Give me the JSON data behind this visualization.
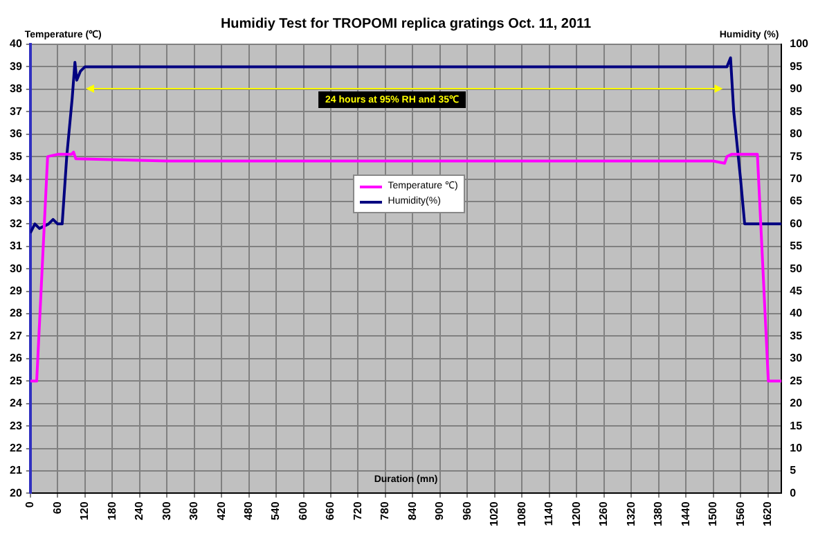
{
  "chart_data": {
    "type": "line",
    "title": "Humidiy Test for TROPOMI replica gratings Oct. 11, 2011",
    "xlabel": "Duration (mn)",
    "ylabel": "Temperature (℃)",
    "y2label": "Humidity (%)",
    "xlim": [
      0,
      1650
    ],
    "xticks": [
      0,
      60,
      120,
      180,
      240,
      300,
      360,
      420,
      480,
      540,
      600,
      660,
      720,
      780,
      840,
      900,
      960,
      1020,
      1080,
      1140,
      1200,
      1260,
      1320,
      1380,
      1440,
      1500,
      1560,
      1620
    ],
    "ylim": [
      20,
      40
    ],
    "yticks": [
      20,
      21,
      22,
      23,
      24,
      25,
      26,
      27,
      28,
      29,
      30,
      31,
      32,
      33,
      34,
      35,
      36,
      37,
      38,
      39,
      40
    ],
    "y2lim": [
      0,
      100
    ],
    "y2ticks": [
      0,
      5,
      10,
      15,
      20,
      25,
      30,
      35,
      40,
      45,
      50,
      55,
      60,
      65,
      70,
      75,
      80,
      85,
      90,
      95,
      100
    ],
    "grid": true,
    "legend": "center",
    "marker": "none",
    "line_style": "solid",
    "annotations": [
      "24 hours at 95% RH and 35℃"
    ],
    "series": [
      {
        "name": "Temperature ℃)",
        "color": "#ff00ff",
        "axis": "y",
        "x": [
          0,
          14,
          38,
          60,
          90,
          95,
          100,
          300,
          600,
          900,
          1200,
          1500,
          1525,
          1530,
          1540,
          1597,
          1621,
          1650
        ],
        "values": [
          25,
          25,
          35,
          35.1,
          35.1,
          35.2,
          34.9,
          34.8,
          34.8,
          34.8,
          34.8,
          34.8,
          34.7,
          35,
          35.1,
          35.1,
          25,
          25
        ]
      },
      {
        "name": "Humidity(%)",
        "color": "#000080",
        "axis": "y2",
        "x": [
          0,
          10,
          20,
          40,
          50,
          60,
          70,
          80,
          92,
          98,
          102,
          110,
          120,
          300,
          600,
          900,
          1200,
          1500,
          1530,
          1538,
          1545,
          1560,
          1569,
          1600,
          1620,
          1650
        ],
        "values": [
          58,
          60,
          59,
          60,
          61,
          60,
          60,
          75,
          88,
          96,
          92,
          94,
          95,
          95,
          95,
          95,
          95,
          95,
          95,
          97,
          85,
          70,
          60,
          60,
          60,
          60
        ]
      }
    ]
  }
}
